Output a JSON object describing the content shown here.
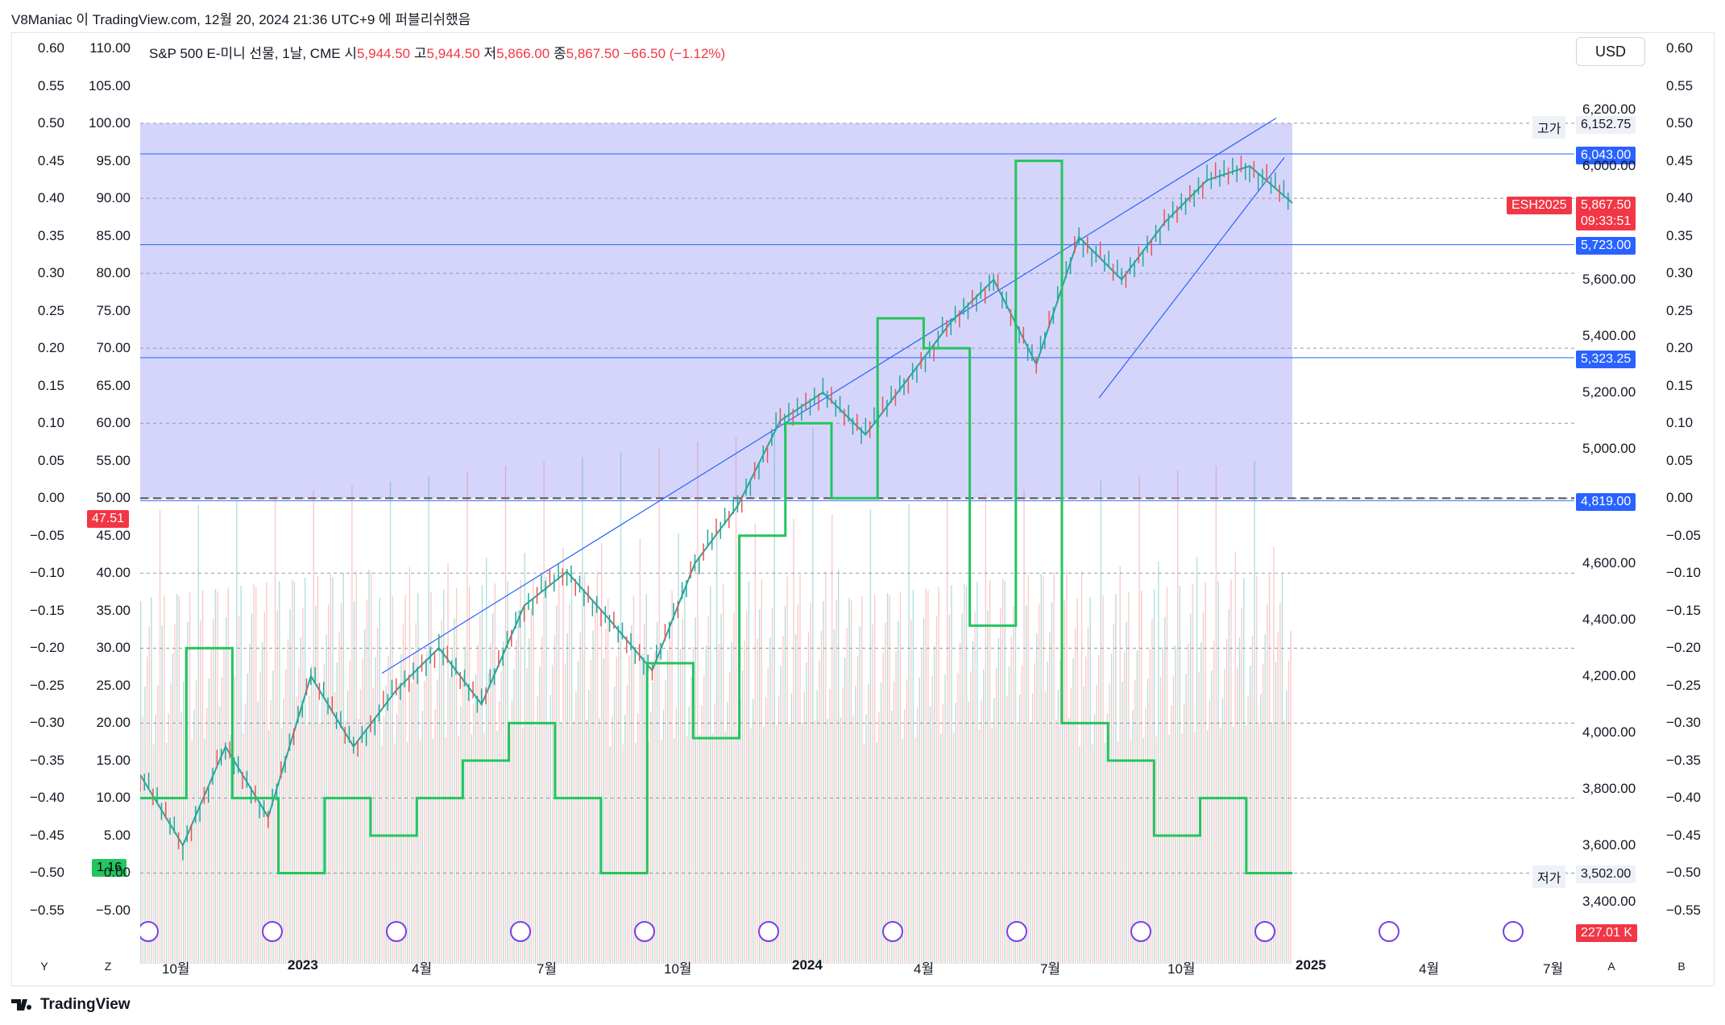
{
  "header": {
    "caption": "V8Maniac 이 TradingView.com, 12월 20, 2024 21:36 UTC+9 에 퍼블리쉬했음"
  },
  "legend": {
    "symbol": "S&P 500 E-미니 선물, 1날, CME",
    "open_label": "시",
    "open": "5,944.50",
    "high_label": "고",
    "high": "5,944.50",
    "low_label": "저",
    "low": "5,866.00",
    "close_label": "종",
    "close": "5,867.50",
    "change": "−66.50 (−1.12%)"
  },
  "currency": "USD",
  "axes": {
    "left_osc": [
      "0.60",
      "0.55",
      "0.50",
      "0.45",
      "0.40",
      "0.35",
      "0.30",
      "0.25",
      "0.20",
      "0.15",
      "0.10",
      "0.05",
      "0.00",
      "−0.05",
      "−0.10",
      "−0.15",
      "−0.20",
      "−0.25",
      "−0.30",
      "−0.35",
      "−0.40",
      "−0.45",
      "−0.50",
      "−0.55"
    ],
    "left_scale": [
      "110.00",
      "105.00",
      "100.00",
      "95.00",
      "90.00",
      "85.00",
      "80.00",
      "75.00",
      "70.00",
      "65.00",
      "60.00",
      "55.00",
      "50.00",
      "45.00",
      "40.00",
      "35.00",
      "30.00",
      "25.00",
      "20.00",
      "15.00",
      "10.00",
      "5.00",
      "0.00",
      "−5.00"
    ],
    "right_osc": [
      "0.60",
      "0.55",
      "0.50",
      "0.45",
      "0.40",
      "0.35",
      "0.30",
      "0.25",
      "0.20",
      "0.15",
      "0.10",
      "0.05",
      "0.00",
      "−0.05",
      "−0.10",
      "−0.15",
      "−0.20",
      "−0.25",
      "−0.30",
      "−0.35",
      "−0.40",
      "−0.45",
      "−0.50",
      "−0.55"
    ],
    "price": [
      "6,200.00",
      "6,000.00",
      "5,600.00",
      "5,400.00",
      "5,200.00",
      "5,000.00",
      "4,600.00",
      "4,400.00",
      "4,200.00",
      "4,000.00",
      "3,800.00",
      "3,600.00",
      "3,400.00"
    ],
    "time": [
      "10월",
      "2023",
      "4월",
      "7월",
      "10월",
      "2024",
      "4월",
      "7월",
      "10월",
      "2025",
      "4월",
      "7월"
    ]
  },
  "price_tags": {
    "high_label": "고가",
    "high": "6,152.75",
    "level1": "6,043.00",
    "level2": "5,723.00",
    "level3": "5,323.25",
    "level4": "4,819.00",
    "symbol": "ESH2025",
    "last": "5,867.50",
    "countdown": "09:33:51",
    "low_label": "저가",
    "low": "3,502.00",
    "volume": "227.01 K"
  },
  "left_tags": {
    "osc_value": "47.51",
    "green_value": "1.16"
  },
  "bottom_buttons": {
    "left1": "Y",
    "left2": "Z",
    "right1": "A",
    "right2": "B"
  },
  "brand": "TradingView",
  "colors": {
    "up": "#26a69a",
    "down": "#ef5350",
    "band": "#d5d5fb",
    "trend": "#2962ff",
    "green_line": "#22c55e",
    "tag_blue": "#2962ff",
    "tag_red": "#f23645"
  },
  "chart_data": {
    "type": "line",
    "series": [
      {
        "name": "S&P 500 E-미니 선물, 1날, CME",
        "x_label_range": [
          "2022-10",
          "2024-12-20"
        ],
        "close_points": [
          [
            0,
            3850
          ],
          [
            2,
            3600
          ],
          [
            4,
            3950
          ],
          [
            6,
            3700
          ],
          [
            8,
            4200
          ],
          [
            10,
            3950
          ],
          [
            12,
            4150
          ],
          [
            14,
            4300
          ],
          [
            16,
            4100
          ],
          [
            18,
            4450
          ],
          [
            20,
            4570
          ],
          [
            22,
            4400
          ],
          [
            24,
            4220
          ],
          [
            26,
            4600
          ],
          [
            28,
            4800
          ],
          [
            30,
            5100
          ],
          [
            32,
            5200
          ],
          [
            34,
            5050
          ],
          [
            36,
            5250
          ],
          [
            38,
            5450
          ],
          [
            40,
            5600
          ],
          [
            42,
            5300
          ],
          [
            44,
            5750
          ],
          [
            46,
            5600
          ],
          [
            48,
            5800
          ],
          [
            50,
            5950
          ],
          [
            52,
            6000
          ],
          [
            54,
            5870
          ]
        ]
      },
      {
        "name": "green",
        "values": [
          -0.4,
          -0.2,
          -0.4,
          -0.5,
          -0.4,
          -0.45,
          -0.4,
          -0.35,
          -0.3,
          -0.4,
          -0.5,
          -0.22,
          -0.32,
          -0.05,
          0.1,
          0.0,
          0.24,
          0.2,
          -0.17,
          0.45,
          -0.3,
          -0.35,
          -0.45,
          -0.4,
          -0.5
        ]
      }
    ],
    "ylim_price": [
      3400,
      6200
    ],
    "ylim_osc": [
      -0.55,
      0.6
    ]
  }
}
